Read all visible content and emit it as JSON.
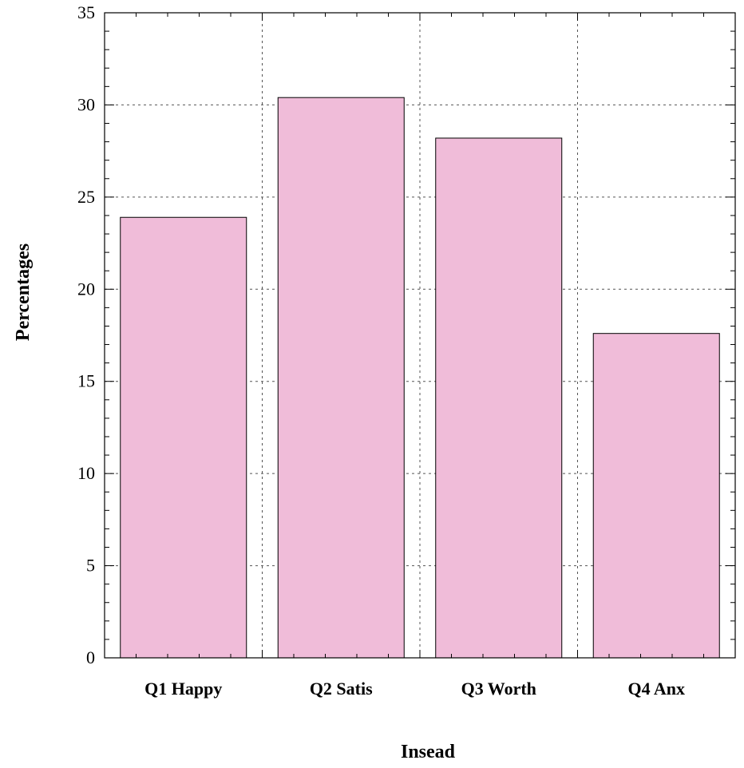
{
  "chart_data": {
    "type": "bar",
    "title": "",
    "xlabel": "Insead",
    "ylabel": "Percentages",
    "categories": [
      "Q1 Happy",
      "Q2 Satis",
      "Q3 Worth",
      "Q4 Anx"
    ],
    "values": [
      23.9,
      30.4,
      28.2,
      17.6
    ],
    "ylim": [
      0,
      35
    ],
    "yticks": [
      0,
      5,
      10,
      15,
      20,
      25,
      30,
      35
    ],
    "grid": true,
    "bar_color": "#f0bcd9"
  }
}
